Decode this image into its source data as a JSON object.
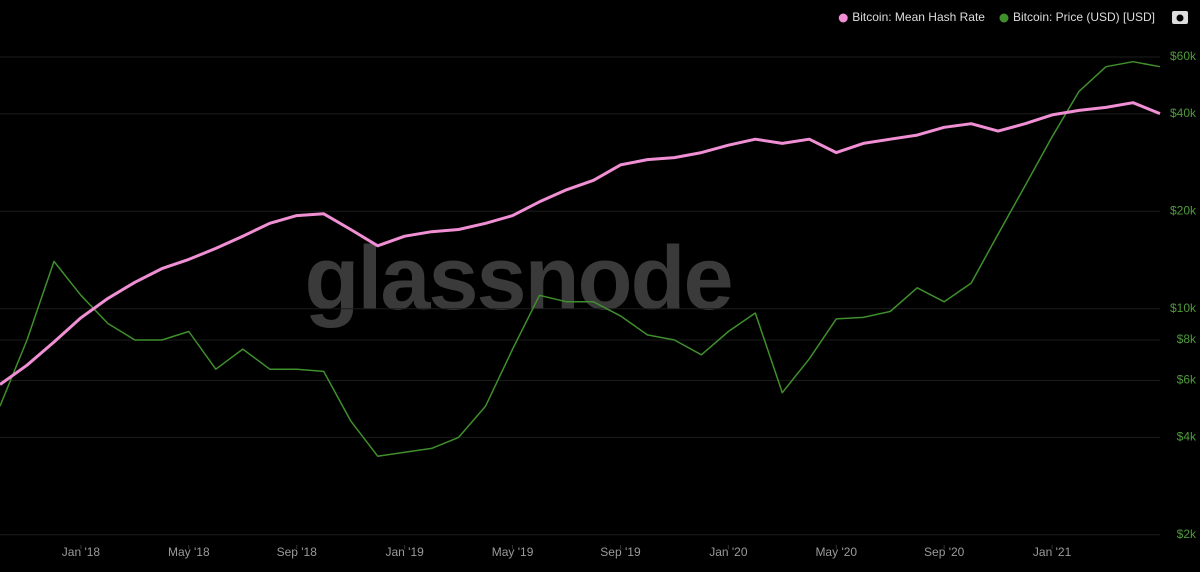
{
  "chart_data": {
    "type": "line",
    "watermark": "glassnode",
    "x": [
      "2017-10",
      "2017-11",
      "2017-12",
      "2018-01",
      "2018-02",
      "2018-03",
      "2018-04",
      "2018-05",
      "2018-06",
      "2018-07",
      "2018-08",
      "2018-09",
      "2018-10",
      "2018-11",
      "2018-12",
      "2019-01",
      "2019-02",
      "2019-03",
      "2019-04",
      "2019-05",
      "2019-06",
      "2019-07",
      "2019-08",
      "2019-09",
      "2019-10",
      "2019-11",
      "2019-12",
      "2020-01",
      "2020-02",
      "2020-03",
      "2020-04",
      "2020-05",
      "2020-06",
      "2020-07",
      "2020-08",
      "2020-09",
      "2020-10",
      "2020-11",
      "2020-12",
      "2021-01",
      "2021-02",
      "2021-03",
      "2021-04",
      "2021-05"
    ],
    "xlim": [
      "2017-10",
      "2021-05"
    ],
    "xticks": [
      {
        "value": "2018-01",
        "label": "Jan '18"
      },
      {
        "value": "2018-05",
        "label": "May '18"
      },
      {
        "value": "2018-09",
        "label": "Sep '18"
      },
      {
        "value": "2019-01",
        "label": "Jan '19"
      },
      {
        "value": "2019-05",
        "label": "May '19"
      },
      {
        "value": "2019-09",
        "label": "Sep '19"
      },
      {
        "value": "2020-01",
        "label": "Jan '20"
      },
      {
        "value": "2020-05",
        "label": "May '20"
      },
      {
        "value": "2020-09",
        "label": "Sep '20"
      },
      {
        "value": "2021-01",
        "label": "Jan '21"
      }
    ],
    "series": [
      {
        "name": "Bitcoin: Mean Hash Rate",
        "color": "#f08fd4",
        "axis": "y2",
        "values": [
          9,
          11,
          14,
          18,
          22,
          26,
          30,
          33,
          37,
          42,
          48,
          52,
          53,
          45,
          38,
          42,
          44,
          45,
          48,
          52,
          60,
          68,
          75,
          88,
          93,
          95,
          100,
          108,
          115,
          110,
          115,
          100,
          110,
          115,
          120,
          130,
          135,
          125,
          135,
          148,
          155,
          160,
          168,
          150
        ]
      },
      {
        "name": "Bitcoin: Price (USD) [USD]",
        "color": "#3f8f2c",
        "values": [
          5000,
          8000,
          14000,
          11000,
          9000,
          8000,
          8000,
          8500,
          6500,
          7500,
          6500,
          6500,
          6400,
          4500,
          3500,
          3600,
          3700,
          4000,
          5000,
          7500,
          11000,
          10500,
          10500,
          9500,
          8300,
          8000,
          7200,
          8500,
          9700,
          5500,
          7000,
          9300,
          9400,
          9800,
          11600,
          10500,
          12000,
          17000,
          24000,
          34000,
          47000,
          56000,
          58000,
          56000
        ]
      }
    ],
    "ylim": [
      1860,
      67700
    ],
    "yticks": [
      {
        "value": 2000,
        "label": "$2k"
      },
      {
        "value": 4000,
        "label": "$4k"
      },
      {
        "value": 6000,
        "label": "$6k"
      },
      {
        "value": 8000,
        "label": "$8k"
      },
      {
        "value": 10000,
        "label": "$10k"
      },
      {
        "value": 20000,
        "label": "$20k"
      },
      {
        "value": 40000,
        "label": "$40k"
      },
      {
        "value": 60000,
        "label": "$60k"
      }
    ],
    "y2lim": [
      1.7,
      322
    ],
    "log_scale": true,
    "grid": true,
    "legend": "top-right",
    "tick_color": "#4e9a3a"
  }
}
